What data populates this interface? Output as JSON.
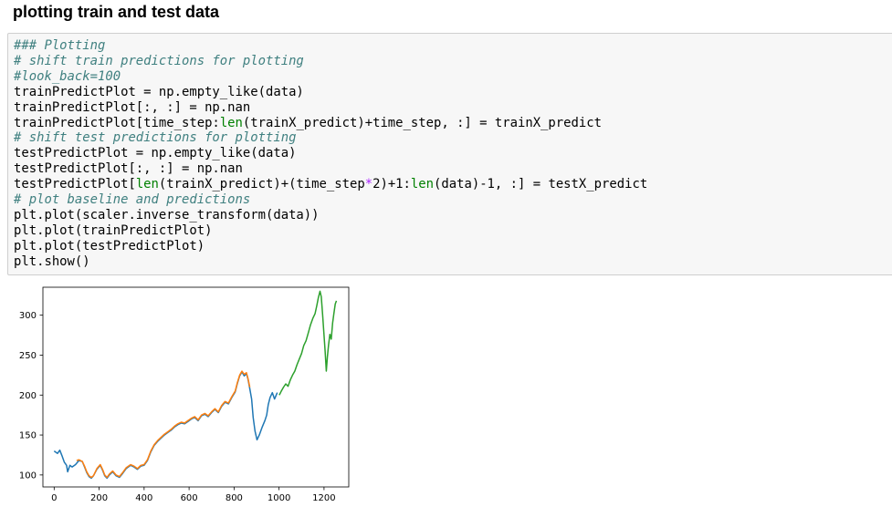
{
  "cell": {
    "heading": "plotting train and test data",
    "code_lines": [
      [
        {
          "t": "### Plotting",
          "c": "comment"
        }
      ],
      [
        {
          "t": "# shift train predictions for plotting",
          "c": "comment"
        }
      ],
      [
        {
          "t": "#look_back=100",
          "c": "comment"
        }
      ],
      [
        {
          "t": "trainPredictPlot = np.empty_like(data)",
          "c": ""
        }
      ],
      [
        {
          "t": "trainPredictPlot[:, :] = np.nan",
          "c": ""
        }
      ],
      [
        {
          "t": "trainPredictPlot[time_step:",
          "c": ""
        },
        {
          "t": "len",
          "c": "builtin"
        },
        {
          "t": "(trainX_predict)+time_step, :] = trainX_predict",
          "c": ""
        }
      ],
      [
        {
          "t": "# shift test predictions for plotting",
          "c": "comment"
        }
      ],
      [
        {
          "t": "testPredictPlot = np.empty_like(data)",
          "c": ""
        }
      ],
      [
        {
          "t": "testPredictPlot[:, :] = np.nan",
          "c": ""
        }
      ],
      [
        {
          "t": "testPredictPlot[",
          "c": ""
        },
        {
          "t": "len",
          "c": "builtin"
        },
        {
          "t": "(trainX_predict)+(time_step",
          "c": ""
        },
        {
          "t": "*",
          "c": "op"
        },
        {
          "t": "2)+1:",
          "c": ""
        },
        {
          "t": "len",
          "c": "builtin"
        },
        {
          "t": "(data)-1, :] = testX_predict",
          "c": ""
        }
      ],
      [
        {
          "t": "# plot baseline and predictions",
          "c": "comment"
        }
      ],
      [
        {
          "t": "plt.plot(scaler.inverse_transform(data))",
          "c": ""
        }
      ],
      [
        {
          "t": "plt.plot(trainPredictPlot)",
          "c": ""
        }
      ],
      [
        {
          "t": "plt.plot(testPredictPlot)",
          "c": ""
        }
      ],
      [
        {
          "t": "plt.show()",
          "c": ""
        }
      ]
    ]
  },
  "chart_data": {
    "type": "line",
    "title": "",
    "xlabel": "",
    "ylabel": "",
    "xlim": [
      -50,
      1310
    ],
    "ylim": [
      85,
      335
    ],
    "x_ticks": [
      0,
      200,
      400,
      600,
      800,
      1000,
      1200
    ],
    "y_ticks": [
      100,
      150,
      200,
      250,
      300
    ],
    "grid": false,
    "legend": "none",
    "series": [
      {
        "color": "#1f77b4",
        "points": [
          [
            0,
            130
          ],
          [
            15,
            127
          ],
          [
            25,
            131
          ],
          [
            35,
            124
          ],
          [
            45,
            116
          ],
          [
            55,
            112
          ],
          [
            60,
            104
          ],
          [
            70,
            112
          ],
          [
            80,
            110
          ],
          [
            95,
            113
          ],
          [
            110,
            118
          ],
          [
            125,
            117
          ],
          [
            135,
            110
          ],
          [
            145,
            103
          ],
          [
            155,
            98
          ],
          [
            165,
            96
          ],
          [
            175,
            99
          ],
          [
            190,
            107
          ],
          [
            205,
            112
          ],
          [
            215,
            106
          ],
          [
            225,
            99
          ],
          [
            235,
            96
          ],
          [
            245,
            100
          ],
          [
            260,
            104
          ],
          [
            275,
            99
          ],
          [
            290,
            97
          ],
          [
            305,
            102
          ],
          [
            320,
            108
          ],
          [
            340,
            112
          ],
          [
            355,
            110
          ],
          [
            370,
            107
          ],
          [
            385,
            111
          ],
          [
            400,
            112
          ],
          [
            415,
            118
          ],
          [
            430,
            129
          ],
          [
            445,
            137
          ],
          [
            460,
            142
          ],
          [
            475,
            146
          ],
          [
            490,
            150
          ],
          [
            505,
            153
          ],
          [
            520,
            156
          ],
          [
            535,
            160
          ],
          [
            550,
            163
          ],
          [
            565,
            165
          ],
          [
            580,
            164
          ],
          [
            595,
            167
          ],
          [
            610,
            170
          ],
          [
            625,
            172
          ],
          [
            640,
            168
          ],
          [
            655,
            174
          ],
          [
            670,
            176
          ],
          [
            685,
            173
          ],
          [
            700,
            178
          ],
          [
            715,
            182
          ],
          [
            730,
            178
          ],
          [
            745,
            186
          ],
          [
            760,
            191
          ],
          [
            775,
            189
          ],
          [
            790,
            197
          ],
          [
            805,
            204
          ],
          [
            815,
            215
          ],
          [
            825,
            224
          ],
          [
            835,
            229
          ],
          [
            845,
            224
          ],
          [
            855,
            227
          ],
          [
            862,
            220
          ],
          [
            870,
            208
          ],
          [
            878,
            195
          ],
          [
            885,
            172
          ],
          [
            893,
            155
          ],
          [
            902,
            144
          ],
          [
            912,
            150
          ],
          [
            925,
            160
          ],
          [
            937,
            168
          ],
          [
            945,
            175
          ],
          [
            952,
            188
          ],
          [
            960,
            197
          ],
          [
            970,
            203
          ],
          [
            980,
            195
          ],
          [
            992,
            203
          ]
        ]
      },
      {
        "color": "#ff7f0e",
        "points": [
          [
            100,
            118
          ],
          [
            110,
            119
          ],
          [
            125,
            117
          ],
          [
            135,
            111
          ],
          [
            145,
            104
          ],
          [
            155,
            99
          ],
          [
            165,
            97
          ],
          [
            175,
            99
          ],
          [
            190,
            108
          ],
          [
            205,
            113
          ],
          [
            215,
            107
          ],
          [
            225,
            100
          ],
          [
            235,
            97
          ],
          [
            245,
            101
          ],
          [
            260,
            105
          ],
          [
            275,
            100
          ],
          [
            290,
            98
          ],
          [
            305,
            103
          ],
          [
            320,
            109
          ],
          [
            340,
            113
          ],
          [
            355,
            111
          ],
          [
            370,
            108
          ],
          [
            385,
            112
          ],
          [
            400,
            113
          ],
          [
            415,
            119
          ],
          [
            430,
            130
          ],
          [
            445,
            138
          ],
          [
            460,
            143
          ],
          [
            475,
            147
          ],
          [
            490,
            151
          ],
          [
            505,
            154
          ],
          [
            520,
            157
          ],
          [
            535,
            161
          ],
          [
            550,
            164
          ],
          [
            565,
            166
          ],
          [
            580,
            165
          ],
          [
            595,
            168
          ],
          [
            610,
            171
          ],
          [
            625,
            173
          ],
          [
            640,
            169
          ],
          [
            655,
            175
          ],
          [
            670,
            177
          ],
          [
            685,
            174
          ],
          [
            700,
            179
          ],
          [
            715,
            183
          ],
          [
            730,
            179
          ],
          [
            745,
            187
          ],
          [
            760,
            192
          ],
          [
            775,
            190
          ],
          [
            790,
            198
          ],
          [
            805,
            205
          ],
          [
            815,
            216
          ],
          [
            825,
            225
          ],
          [
            835,
            230
          ],
          [
            845,
            226
          ],
          [
            855,
            228
          ],
          [
            862,
            221
          ],
          [
            870,
            210
          ]
        ]
      },
      {
        "color": "#2ca02c",
        "points": [
          [
            1001,
            200
          ],
          [
            1010,
            205
          ],
          [
            1020,
            210
          ],
          [
            1030,
            214
          ],
          [
            1040,
            211
          ],
          [
            1050,
            219
          ],
          [
            1060,
            225
          ],
          [
            1070,
            230
          ],
          [
            1080,
            238
          ],
          [
            1090,
            245
          ],
          [
            1100,
            252
          ],
          [
            1110,
            262
          ],
          [
            1120,
            268
          ],
          [
            1130,
            278
          ],
          [
            1140,
            288
          ],
          [
            1150,
            296
          ],
          [
            1160,
            302
          ],
          [
            1168,
            312
          ],
          [
            1175,
            322
          ],
          [
            1182,
            330
          ],
          [
            1188,
            323
          ],
          [
            1194,
            300
          ],
          [
            1200,
            275
          ],
          [
            1205,
            255
          ],
          [
            1210,
            230
          ],
          [
            1215,
            248
          ],
          [
            1220,
            262
          ],
          [
            1226,
            276
          ],
          [
            1232,
            270
          ],
          [
            1238,
            290
          ],
          [
            1244,
            302
          ],
          [
            1250,
            314
          ],
          [
            1255,
            318
          ]
        ]
      }
    ]
  }
}
